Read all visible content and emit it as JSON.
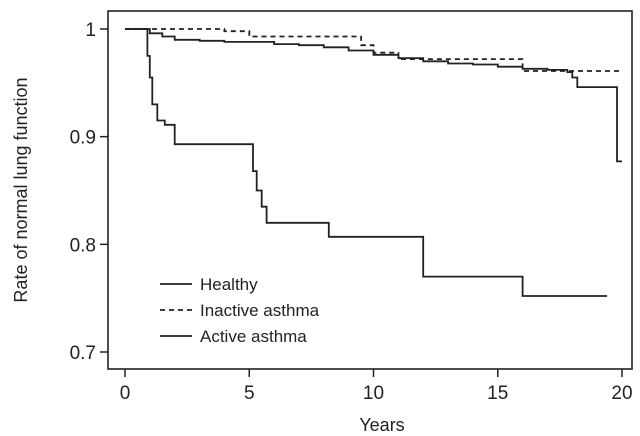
{
  "chart_data": {
    "type": "line",
    "step": true,
    "xlabel": "Years",
    "ylabel": "Rate of normal lung function",
    "xlim": [
      -1,
      20
    ],
    "ylim": [
      0.69,
      1.02
    ],
    "xticks": [
      0,
      5,
      10,
      15,
      20
    ],
    "yticks": [
      0.7,
      0.8,
      0.9,
      1
    ],
    "xtick_labels": [
      "0",
      "5",
      "10",
      "15",
      "20"
    ],
    "ytick_labels": [
      "0.7",
      "0.8",
      "0.9",
      "1"
    ],
    "grid": false,
    "legend_position": "bottom-left",
    "series": [
      {
        "name": "Healthy",
        "style": "solid",
        "color": "#222222",
        "x": [
          0,
          0.8,
          1.0,
          1.5,
          2.0,
          3.0,
          4.0,
          5.0,
          6.0,
          7.0,
          8.0,
          9.0,
          10.0,
          11.0,
          12.0,
          13.0,
          14.0,
          15.0,
          16.0,
          17.0,
          17.8,
          18.0,
          18.2,
          19.5,
          19.8,
          20.0
        ],
        "y": [
          1.0,
          1.0,
          0.996,
          0.993,
          0.99,
          0.989,
          0.988,
          0.988,
          0.986,
          0.985,
          0.983,
          0.98,
          0.976,
          0.973,
          0.97,
          0.968,
          0.967,
          0.965,
          0.963,
          0.962,
          0.96,
          0.955,
          0.946,
          0.946,
          0.877,
          0.877
        ]
      },
      {
        "name": "Inactive asthma",
        "style": "dashed",
        "color": "#222222",
        "x": [
          0,
          3.0,
          4.0,
          5.0,
          9.0,
          9.5,
          10.0,
          11.0,
          15.0,
          16.0,
          20.0
        ],
        "y": [
          1.0,
          1.0,
          0.998,
          0.993,
          0.993,
          0.985,
          0.978,
          0.972,
          0.972,
          0.961,
          0.961
        ]
      },
      {
        "name": "Active asthma",
        "style": "solid",
        "color": "#222222",
        "x": [
          0,
          0.8,
          0.9,
          1.0,
          1.1,
          1.3,
          1.6,
          2.0,
          5.0,
          5.15,
          5.3,
          5.5,
          5.7,
          7.8,
          8.2,
          12.0,
          16.0,
          19.4
        ],
        "y": [
          1.0,
          1.0,
          0.975,
          0.955,
          0.93,
          0.915,
          0.911,
          0.893,
          0.893,
          0.868,
          0.85,
          0.835,
          0.82,
          0.82,
          0.807,
          0.77,
          0.752,
          0.752
        ]
      }
    ]
  }
}
